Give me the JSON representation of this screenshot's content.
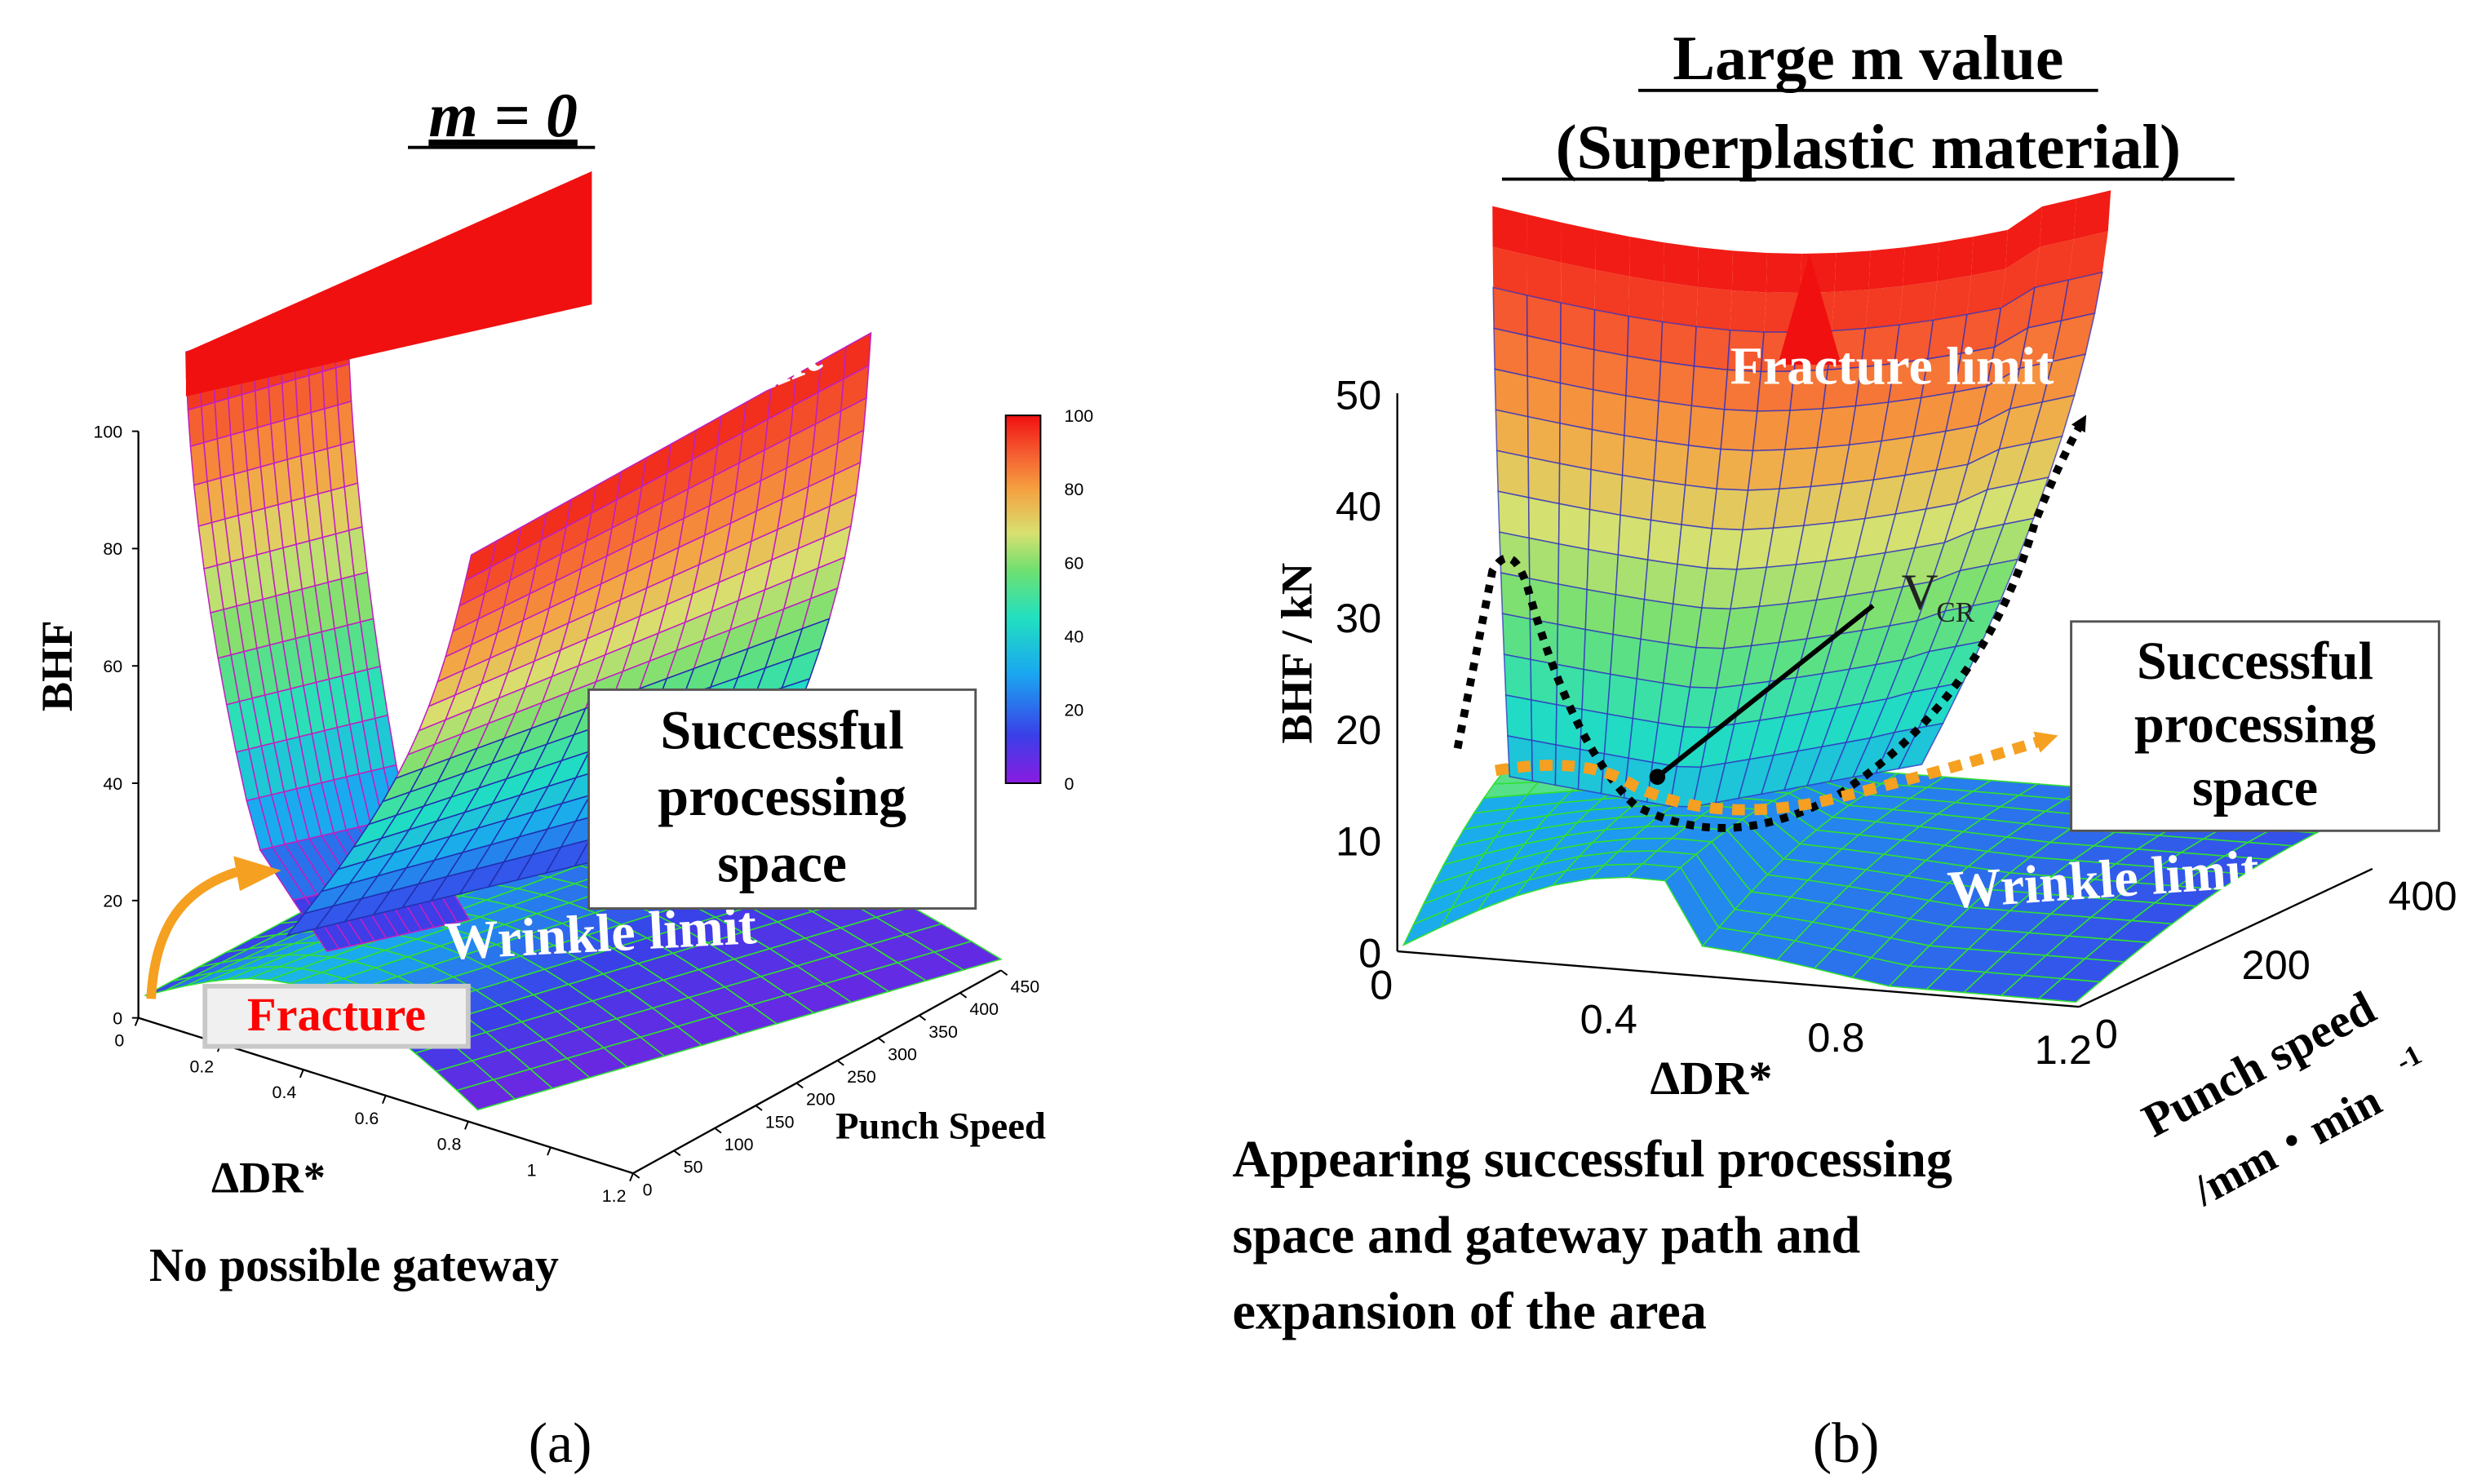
{
  "chart_data": [
    {
      "panel": "a",
      "type": "surface3d",
      "title": "m = 0",
      "panel_label": "(a)",
      "zlabel": "BHF",
      "xlabel": "ΔDR*",
      "ylabel": "Punch Speed",
      "x_ticks": [
        "0",
        "0.2",
        "0.4",
        "0.6",
        "0.8",
        "1",
        "1.2"
      ],
      "y_ticks": [
        "0",
        "50",
        "100",
        "150",
        "200",
        "250",
        "300",
        "350",
        "400",
        "450"
      ],
      "z_ticks": [
        "0",
        "20",
        "40",
        "60",
        "80",
        "100"
      ],
      "xlim": [
        0,
        1.2
      ],
      "ylim": [
        0,
        450
      ],
      "zlim": [
        0,
        100
      ],
      "colorbar": {
        "min": 0,
        "max": 100,
        "ticks": [
          "0",
          "20",
          "40",
          "60",
          "80",
          "100"
        ]
      },
      "annotations": {
        "fracture_limit": "Fracture limit",
        "wrinkle_limit": "Wrinkle limit",
        "fracture": "Fracture",
        "success_box": [
          "Successful",
          "processing",
          "space"
        ]
      },
      "caption": "No possible gateway"
    },
    {
      "panel": "b",
      "type": "surface3d",
      "title_lines": [
        "Large m value",
        "(Superplastic material)"
      ],
      "title_italic_word": "m",
      "panel_label": "(b)",
      "zlabel": "BHF / kN",
      "xlabel": "ΔDR*",
      "ylabel_lines": [
        "Punch speed",
        "/mm・min"
      ],
      "ylabel_exponent": "-1",
      "x_ticks": [
        "0",
        "0.4",
        "0.8",
        "1.2"
      ],
      "y_ticks": [
        "0",
        "200",
        "400"
      ],
      "z_ticks": [
        "0",
        "10",
        "20",
        "30",
        "40",
        "50"
      ],
      "xlim": [
        0,
        1.2
      ],
      "ylim": [
        0,
        400
      ],
      "zlim": [
        0,
        50
      ],
      "annotations": {
        "fracture_limit": "Fracture limit",
        "wrinkle_limit": "Wrinkle limit",
        "vcr": "V",
        "vcr_sub": "CR",
        "success_box": [
          "Successful",
          "processing",
          "space"
        ]
      },
      "caption_lines": [
        "Appearing successful processing",
        "space and gateway path and",
        "expansion of the area"
      ]
    }
  ],
  "colors": {
    "rainbow": [
      "#7b1fe0",
      "#3a3fe8",
      "#1aa8f0",
      "#22e0c0",
      "#70e070",
      "#d8e070",
      "#f5a040",
      "#f55a30",
      "#f01010"
    ],
    "mesh_a": "#c020c0",
    "mesh_floor": "#30e030",
    "mesh_b": "#3030c0",
    "fracture_text": "#ff0000",
    "arrow_orange": "#f5a020"
  }
}
